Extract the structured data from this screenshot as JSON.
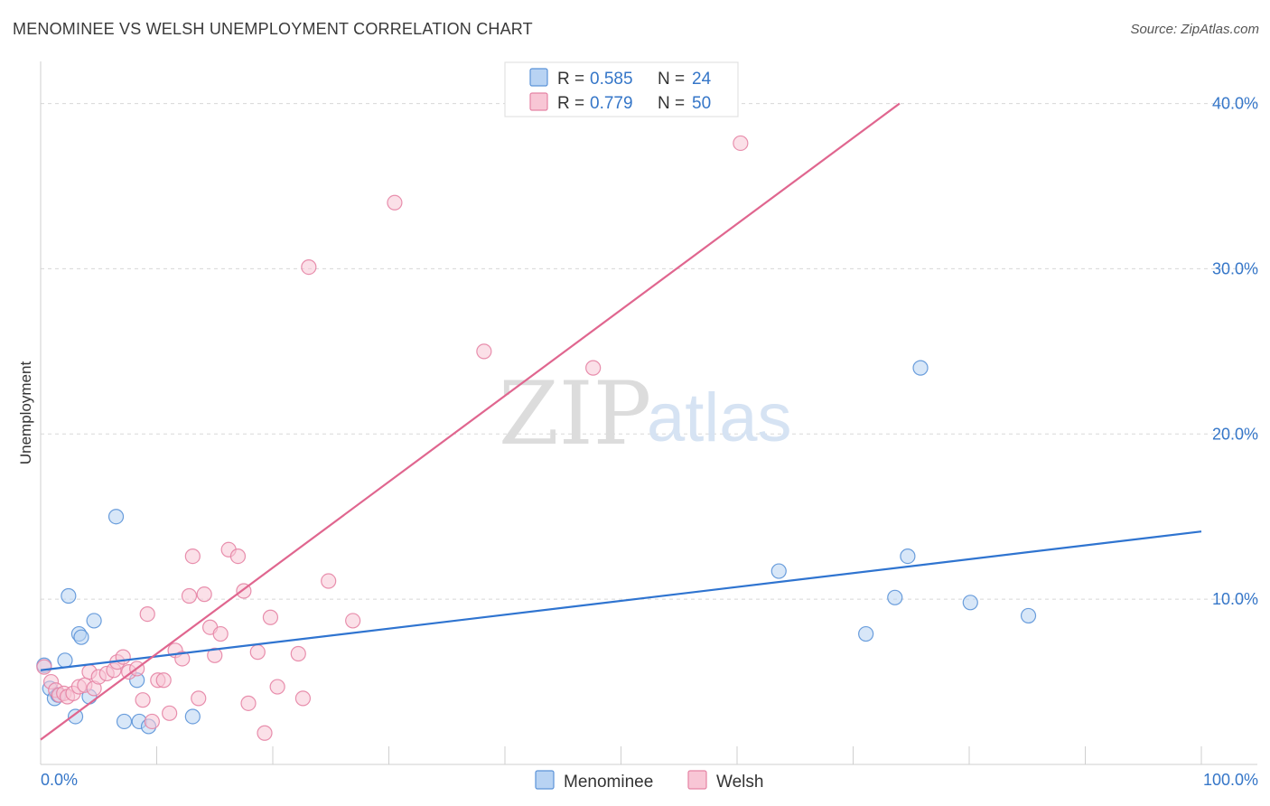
{
  "title": "MENOMINEE VS WELSH UNEMPLOYMENT CORRELATION CHART",
  "source": "Source: ZipAtlas.com",
  "watermark": {
    "zip": "ZIP",
    "atlas": "atlas"
  },
  "colors": {
    "menominee_fill": "#b8d3f3",
    "menominee_stroke": "#5b93d8",
    "menominee_line": "#2f74d0",
    "welsh_fill": "#f8c6d5",
    "welsh_stroke": "#e583a4",
    "welsh_line": "#e0668f",
    "accent_text": "#3576c8",
    "grid": "#d8d8d8"
  },
  "legend": {
    "rows": [
      {
        "r_label": "R =",
        "r_value": "0.585",
        "n_label": "N =",
        "n_value": "24",
        "series": "menominee"
      },
      {
        "r_label": "R =",
        "r_value": "0.779",
        "n_label": "N =",
        "n_value": "50",
        "series": "welsh"
      }
    ]
  },
  "chart_data": {
    "type": "scatter",
    "title": "MENOMINEE VS WELSH UNEMPLOYMENT CORRELATION CHART",
    "xlabel": "",
    "ylabel": "Unemployment",
    "xlim": [
      0,
      100
    ],
    "ylim": [
      0,
      42
    ],
    "x_tick_labels": [
      "0.0%",
      "100.0%"
    ],
    "y_ticks": [
      10,
      20,
      30,
      40
    ],
    "y_tick_labels": [
      "10.0%",
      "20.0%",
      "30.0%",
      "40.0%"
    ],
    "grid": "horizontal dashed",
    "series": [
      {
        "name": "Menominee",
        "points": [
          [
            0.3,
            6.0
          ],
          [
            0.8,
            4.6
          ],
          [
            1.2,
            4.0
          ],
          [
            1.5,
            4.2
          ],
          [
            2.1,
            6.3
          ],
          [
            2.4,
            10.2
          ],
          [
            3.0,
            2.9
          ],
          [
            3.3,
            7.9
          ],
          [
            3.5,
            7.7
          ],
          [
            4.2,
            4.1
          ],
          [
            4.6,
            8.7
          ],
          [
            6.5,
            15.0
          ],
          [
            7.2,
            2.6
          ],
          [
            8.3,
            5.1
          ],
          [
            8.5,
            2.6
          ],
          [
            9.3,
            2.3
          ],
          [
            13.1,
            2.9
          ],
          [
            63.6,
            11.7
          ],
          [
            71.1,
            7.9
          ],
          [
            73.6,
            10.1
          ],
          [
            74.7,
            12.6
          ],
          [
            75.8,
            24.0
          ],
          [
            80.1,
            9.8
          ],
          [
            85.1,
            9.0
          ]
        ],
        "trend": {
          "x": [
            0,
            100
          ],
          "y": [
            5.7,
            14.1
          ]
        }
      },
      {
        "name": "Welsh",
        "points": [
          [
            0.3,
            5.9
          ],
          [
            0.9,
            5.0
          ],
          [
            1.3,
            4.5
          ],
          [
            1.6,
            4.2
          ],
          [
            2.0,
            4.3
          ],
          [
            2.3,
            4.1
          ],
          [
            2.8,
            4.3
          ],
          [
            3.3,
            4.7
          ],
          [
            3.8,
            4.8
          ],
          [
            4.2,
            5.6
          ],
          [
            4.6,
            4.6
          ],
          [
            5.0,
            5.3
          ],
          [
            5.7,
            5.5
          ],
          [
            6.3,
            5.7
          ],
          [
            6.6,
            6.2
          ],
          [
            7.1,
            6.5
          ],
          [
            7.6,
            5.6
          ],
          [
            8.3,
            5.8
          ],
          [
            8.8,
            3.9
          ],
          [
            9.2,
            9.1
          ],
          [
            9.6,
            2.6
          ],
          [
            10.1,
            5.1
          ],
          [
            10.6,
            5.1
          ],
          [
            11.1,
            3.1
          ],
          [
            11.6,
            6.9
          ],
          [
            12.2,
            6.4
          ],
          [
            12.8,
            10.2
          ],
          [
            13.1,
            12.6
          ],
          [
            13.6,
            4.0
          ],
          [
            14.1,
            10.3
          ],
          [
            14.6,
            8.3
          ],
          [
            15.0,
            6.6
          ],
          [
            15.5,
            7.9
          ],
          [
            16.2,
            13.0
          ],
          [
            17.0,
            12.6
          ],
          [
            17.5,
            10.5
          ],
          [
            17.9,
            3.7
          ],
          [
            18.7,
            6.8
          ],
          [
            19.3,
            1.9
          ],
          [
            19.8,
            8.9
          ],
          [
            20.4,
            4.7
          ],
          [
            22.2,
            6.7
          ],
          [
            22.6,
            4.0
          ],
          [
            23.1,
            30.1
          ],
          [
            24.8,
            11.1
          ],
          [
            26.9,
            8.7
          ],
          [
            30.5,
            34.0
          ],
          [
            38.2,
            25.0
          ],
          [
            47.6,
            24.0
          ],
          [
            60.3,
            37.6
          ]
        ],
        "trend": {
          "x": [
            0,
            74
          ],
          "y": [
            1.5,
            40.0
          ]
        }
      }
    ]
  },
  "bottom_legend": {
    "items": [
      {
        "label": "Menominee",
        "series": "menominee"
      },
      {
        "label": "Welsh",
        "series": "welsh"
      }
    ]
  }
}
